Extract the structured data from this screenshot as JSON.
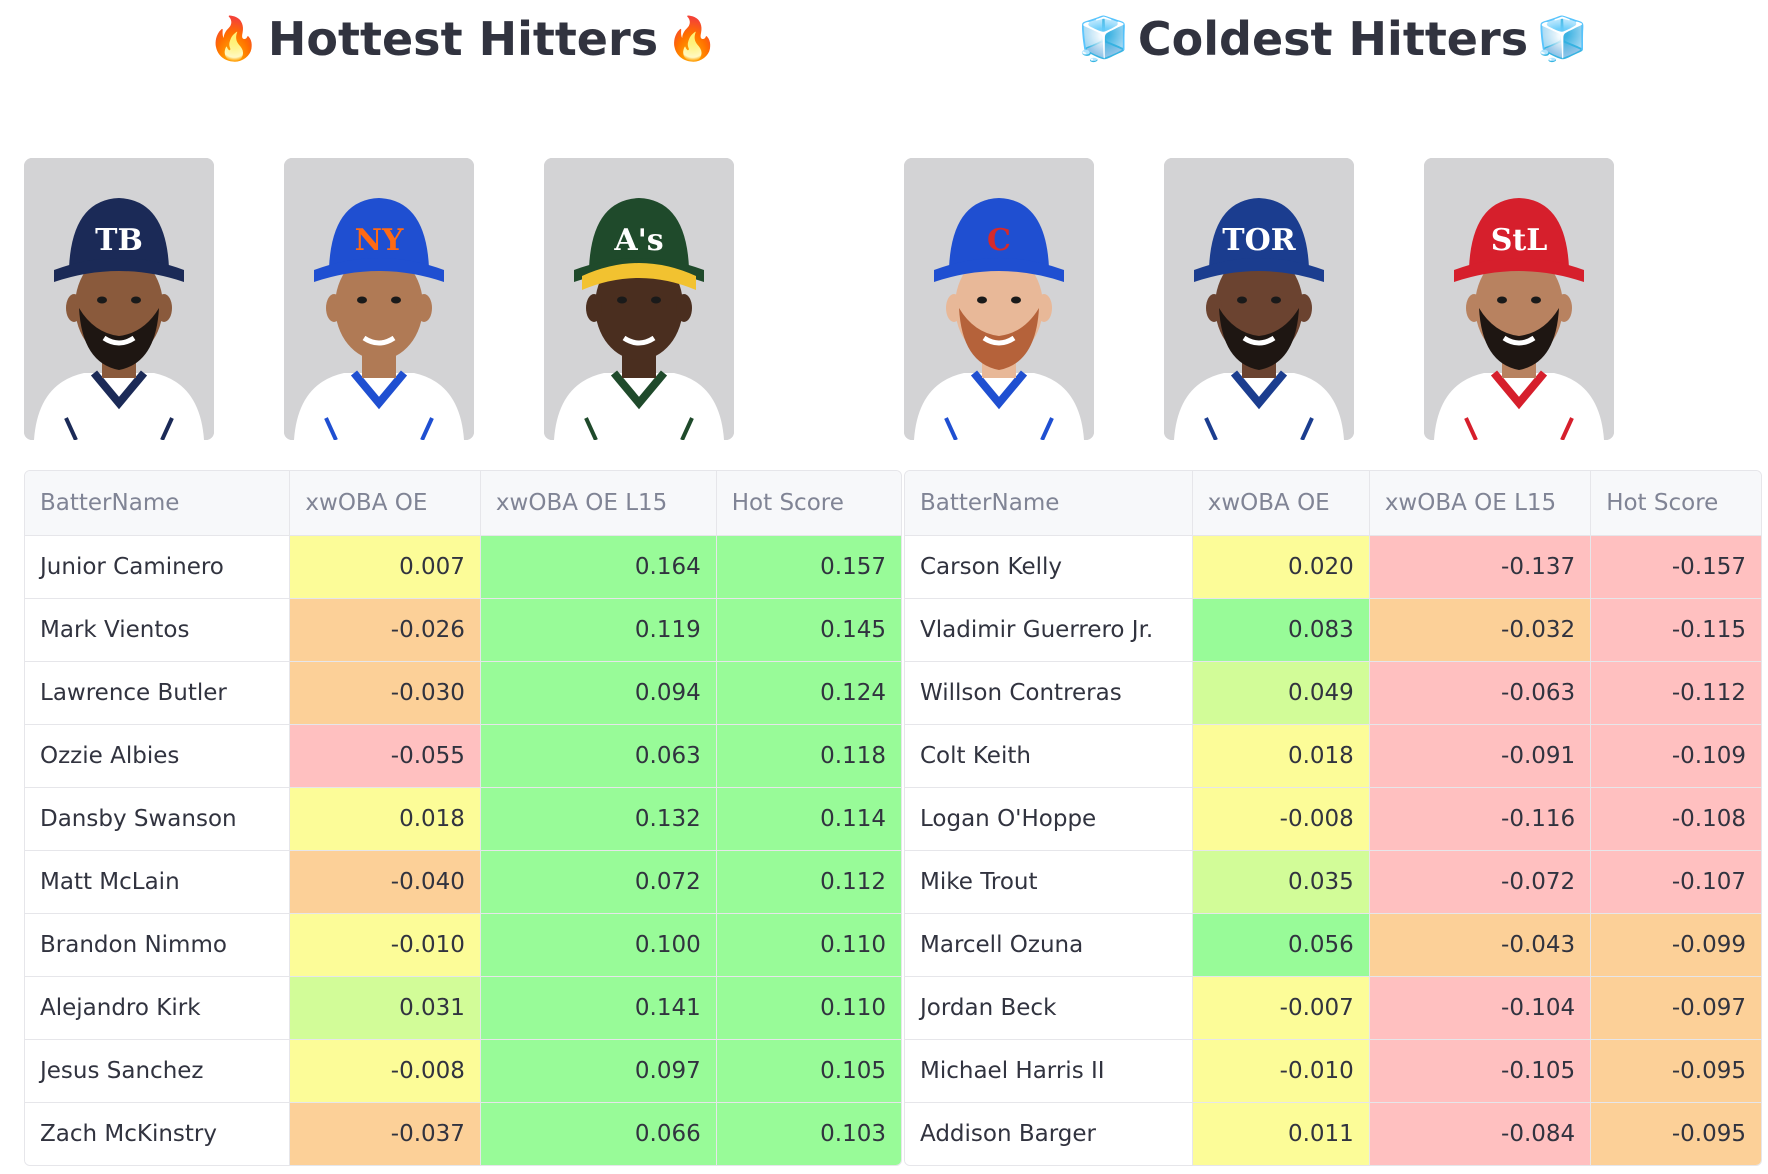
{
  "colors": {
    "green": "#98fb98",
    "lightgreen": "#d2fc98",
    "yellow": "#fcfc98",
    "orange": "#fcd098",
    "red": "#ffc0c0"
  },
  "hot": {
    "title": "Hottest Hitters",
    "emoji_icon": "fire-icon",
    "emoji": "🔥",
    "columns": [
      "BatterName",
      "xwOBA OE",
      "xwOBA OE L15",
      "Hot Score"
    ],
    "rows": [
      {
        "name": "Junior Caminero",
        "xwoba_oe": "0.007",
        "xwoba_oe_l15": "0.164",
        "hot_score": "0.157",
        "c1": "yellow",
        "c2": "green",
        "c3": "green"
      },
      {
        "name": "Mark Vientos",
        "xwoba_oe": "-0.026",
        "xwoba_oe_l15": "0.119",
        "hot_score": "0.145",
        "c1": "orange",
        "c2": "green",
        "c3": "green"
      },
      {
        "name": "Lawrence Butler",
        "xwoba_oe": "-0.030",
        "xwoba_oe_l15": "0.094",
        "hot_score": "0.124",
        "c1": "orange",
        "c2": "green",
        "c3": "green"
      },
      {
        "name": "Ozzie Albies",
        "xwoba_oe": "-0.055",
        "xwoba_oe_l15": "0.063",
        "hot_score": "0.118",
        "c1": "red",
        "c2": "green",
        "c3": "green"
      },
      {
        "name": "Dansby Swanson",
        "xwoba_oe": "0.018",
        "xwoba_oe_l15": "0.132",
        "hot_score": "0.114",
        "c1": "yellow",
        "c2": "green",
        "c3": "green"
      },
      {
        "name": "Matt McLain",
        "xwoba_oe": "-0.040",
        "xwoba_oe_l15": "0.072",
        "hot_score": "0.112",
        "c1": "orange",
        "c2": "green",
        "c3": "green"
      },
      {
        "name": "Brandon Nimmo",
        "xwoba_oe": "-0.010",
        "xwoba_oe_l15": "0.100",
        "hot_score": "0.110",
        "c1": "yellow",
        "c2": "green",
        "c3": "green"
      },
      {
        "name": "Alejandro Kirk",
        "xwoba_oe": "0.031",
        "xwoba_oe_l15": "0.141",
        "hot_score": "0.110",
        "c1": "lightgreen",
        "c2": "green",
        "c3": "green"
      },
      {
        "name": "Jesus Sanchez",
        "xwoba_oe": "-0.008",
        "xwoba_oe_l15": "0.097",
        "hot_score": "0.105",
        "c1": "yellow",
        "c2": "green",
        "c3": "green"
      },
      {
        "name": "Zach McKinstry",
        "xwoba_oe": "-0.037",
        "xwoba_oe_l15": "0.066",
        "hot_score": "0.103",
        "c1": "orange",
        "c2": "green",
        "c3": "green"
      }
    ],
    "photos": [
      {
        "team": "TB",
        "cap": "#1b2a57",
        "logo": "#ffffff",
        "skin": "#8a5a3c",
        "beard": true,
        "jersey": "#ffffff",
        "trim": "#1b2a57"
      },
      {
        "team": "NY",
        "cap": "#1f4fd1",
        "logo": "#ff6a13",
        "skin": "#b07a55",
        "beard": false,
        "jersey": "#ffffff",
        "trim": "#1f4fd1"
      },
      {
        "team": "A's",
        "cap": "#1f4a2b",
        "logo": "#ffffff",
        "skin": "#4a2e1f",
        "beard": false,
        "jersey": "#ffffff",
        "trim": "#1f4a2b",
        "brim": "#f2c230"
      }
    ]
  },
  "cold": {
    "title": "Coldest Hitters",
    "emoji_icon": "ice-cube-icon",
    "emoji": "🧊",
    "columns": [
      "BatterName",
      "xwOBA OE",
      "xwOBA OE L15",
      "Hot Score"
    ],
    "rows": [
      {
        "name": "Carson Kelly",
        "xwoba_oe": "0.020",
        "xwoba_oe_l15": "-0.137",
        "hot_score": "-0.157",
        "c1": "yellow",
        "c2": "red",
        "c3": "red"
      },
      {
        "name": "Vladimir Guerrero Jr.",
        "xwoba_oe": "0.083",
        "xwoba_oe_l15": "-0.032",
        "hot_score": "-0.115",
        "c1": "green",
        "c2": "orange",
        "c3": "red"
      },
      {
        "name": "Willson Contreras",
        "xwoba_oe": "0.049",
        "xwoba_oe_l15": "-0.063",
        "hot_score": "-0.112",
        "c1": "lightgreen",
        "c2": "red",
        "c3": "red"
      },
      {
        "name": "Colt Keith",
        "xwoba_oe": "0.018",
        "xwoba_oe_l15": "-0.091",
        "hot_score": "-0.109",
        "c1": "yellow",
        "c2": "red",
        "c3": "red"
      },
      {
        "name": "Logan O'Hoppe",
        "xwoba_oe": "-0.008",
        "xwoba_oe_l15": "-0.116",
        "hot_score": "-0.108",
        "c1": "yellow",
        "c2": "red",
        "c3": "red"
      },
      {
        "name": "Mike Trout",
        "xwoba_oe": "0.035",
        "xwoba_oe_l15": "-0.072",
        "hot_score": "-0.107",
        "c1": "lightgreen",
        "c2": "red",
        "c3": "red"
      },
      {
        "name": "Marcell Ozuna",
        "xwoba_oe": "0.056",
        "xwoba_oe_l15": "-0.043",
        "hot_score": "-0.099",
        "c1": "green",
        "c2": "orange",
        "c3": "orange"
      },
      {
        "name": "Jordan Beck",
        "xwoba_oe": "-0.007",
        "xwoba_oe_l15": "-0.104",
        "hot_score": "-0.097",
        "c1": "yellow",
        "c2": "red",
        "c3": "orange"
      },
      {
        "name": "Michael Harris II",
        "xwoba_oe": "-0.010",
        "xwoba_oe_l15": "-0.105",
        "hot_score": "-0.095",
        "c1": "yellow",
        "c2": "red",
        "c3": "orange"
      },
      {
        "name": "Addison Barger",
        "xwoba_oe": "0.011",
        "xwoba_oe_l15": "-0.084",
        "hot_score": "-0.095",
        "c1": "yellow",
        "c2": "red",
        "c3": "orange"
      }
    ],
    "photos": [
      {
        "team": "C",
        "cap": "#1f4fd1",
        "logo": "#d62a2a",
        "skin": "#e8b898",
        "beard": true,
        "beardColor": "#b5623a",
        "jersey": "#ffffff",
        "trim": "#1f4fd1"
      },
      {
        "team": "TOR",
        "cap": "#1b3d8f",
        "logo": "#ffffff",
        "skin": "#6b4330",
        "beard": true,
        "jersey": "#ffffff",
        "trim": "#1b3d8f"
      },
      {
        "team": "StL",
        "cap": "#d61f2c",
        "logo": "#ffffff",
        "skin": "#b88260",
        "beard": true,
        "jersey": "#ffffff",
        "trim": "#d61f2c"
      }
    ]
  }
}
